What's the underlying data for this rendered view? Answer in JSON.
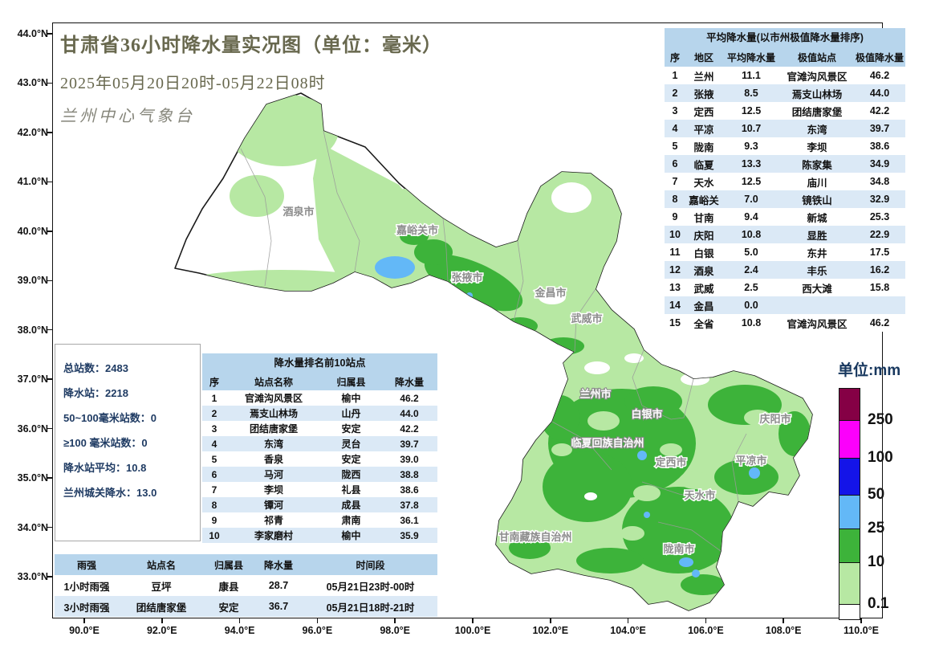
{
  "title": {
    "line1": "甘肃省36小时降水量实况图（单位：毫米）",
    "line2": "2025年05月20日20时-05月22日08时",
    "line3": "兰州中心气象台"
  },
  "axes": {
    "y_labels": [
      "44.0°N",
      "43.0°N",
      "42.0°N",
      "41.0°N",
      "40.0°N",
      "39.0°N",
      "38.0°N",
      "37.0°N",
      "36.0°N",
      "35.0°N",
      "34.0°N",
      "33.0°N"
    ],
    "x_labels": [
      "90.0°E",
      "92.0°E",
      "94.0°E",
      "96.0°E",
      "98.0°E",
      "100.0°E",
      "102.0°E",
      "104.0°E",
      "106.0°E",
      "108.0°E",
      "110.0°E"
    ]
  },
  "map_labels": [
    "酒泉市",
    "嘉峪关市",
    "张掖市",
    "金昌市",
    "武威市",
    "兰州市",
    "白银市",
    "临夏回族自治州",
    "定西市",
    "庆阳市",
    "平凉市",
    "天水市",
    "甘南藏族自治州",
    "陇南市"
  ],
  "avg_table": {
    "title": "平均降水量(以市州极值降水量排序)",
    "headers": [
      "序",
      "地区",
      "平均降水量",
      "极值站点",
      "极值降水量"
    ],
    "rows": [
      [
        "1",
        "兰州",
        "11.1",
        "官滩沟风景区",
        "46.2"
      ],
      [
        "2",
        "张掖",
        "8.5",
        "焉支山林场",
        "44.0"
      ],
      [
        "3",
        "定西",
        "12.5",
        "团结唐家堡",
        "42.2"
      ],
      [
        "4",
        "平凉",
        "10.7",
        "东湾",
        "39.7"
      ],
      [
        "5",
        "陇南",
        "9.3",
        "李坝",
        "38.6"
      ],
      [
        "6",
        "临夏",
        "13.3",
        "陈家集",
        "34.9"
      ],
      [
        "7",
        "天水",
        "12.5",
        "庙川",
        "34.8"
      ],
      [
        "8",
        "嘉峪关",
        "7.0",
        "镜铁山",
        "32.9"
      ],
      [
        "9",
        "甘南",
        "9.4",
        "新城",
        "25.3"
      ],
      [
        "10",
        "庆阳",
        "10.8",
        "显胜",
        "22.9"
      ],
      [
        "11",
        "白银",
        "5.0",
        "东井",
        "17.5"
      ],
      [
        "12",
        "酒泉",
        "2.4",
        "丰乐",
        "16.2"
      ],
      [
        "13",
        "武威",
        "2.5",
        "西大滩",
        "15.8"
      ],
      [
        "14",
        "金昌",
        "0.0",
        "",
        ""
      ],
      [
        "15",
        "全省",
        "10.8",
        "官滩沟风景区",
        "46.2"
      ]
    ]
  },
  "stats_box": {
    "lines": [
      "总站数：2483",
      "降水站：2218",
      "50~100毫米站数：0",
      "≥100 毫米站数：0",
      "降水站平均：10.8",
      "兰州城关降水：13.0"
    ]
  },
  "top10_table": {
    "title": "降水量排名前10站点",
    "headers": [
      "序",
      "站点名称",
      "归属县",
      "降水量"
    ],
    "rows": [
      [
        "1",
        "官滩沟风景区",
        "榆中",
        "46.2"
      ],
      [
        "2",
        "焉支山林场",
        "山丹",
        "44.0"
      ],
      [
        "3",
        "团结唐家堡",
        "安定",
        "42.2"
      ],
      [
        "4",
        "东湾",
        "灵台",
        "39.7"
      ],
      [
        "5",
        "香泉",
        "安定",
        "39.0"
      ],
      [
        "6",
        "马河",
        "陇西",
        "38.8"
      ],
      [
        "7",
        "李坝",
        "礼县",
        "38.6"
      ],
      [
        "8",
        "镡河",
        "成县",
        "37.8"
      ],
      [
        "9",
        "祁青",
        "肃南",
        "36.1"
      ],
      [
        "10",
        "李家磨村",
        "榆中",
        "35.9"
      ]
    ]
  },
  "rain_intensity_table": {
    "headers": [
      "雨强",
      "站点名",
      "归属县",
      "降水量",
      "时间段"
    ],
    "rows": [
      [
        "1小时雨强",
        "豆坪",
        "康县",
        "28.7",
        "05月21日23时-00时"
      ],
      [
        "3小时雨强",
        "团结唐家堡",
        "安定",
        "36.7",
        "05月21日18时-21时"
      ]
    ]
  },
  "legend": {
    "title": "单位:mm",
    "labels": [
      "250",
      "100",
      "50",
      "25",
      "10",
      "0.1"
    ],
    "colors": [
      "#850045",
      "#FB00FB",
      "#1414E8",
      "#63B8F7",
      "#3DB33A",
      "#B7E8A3",
      "#FFFFFF"
    ]
  }
}
